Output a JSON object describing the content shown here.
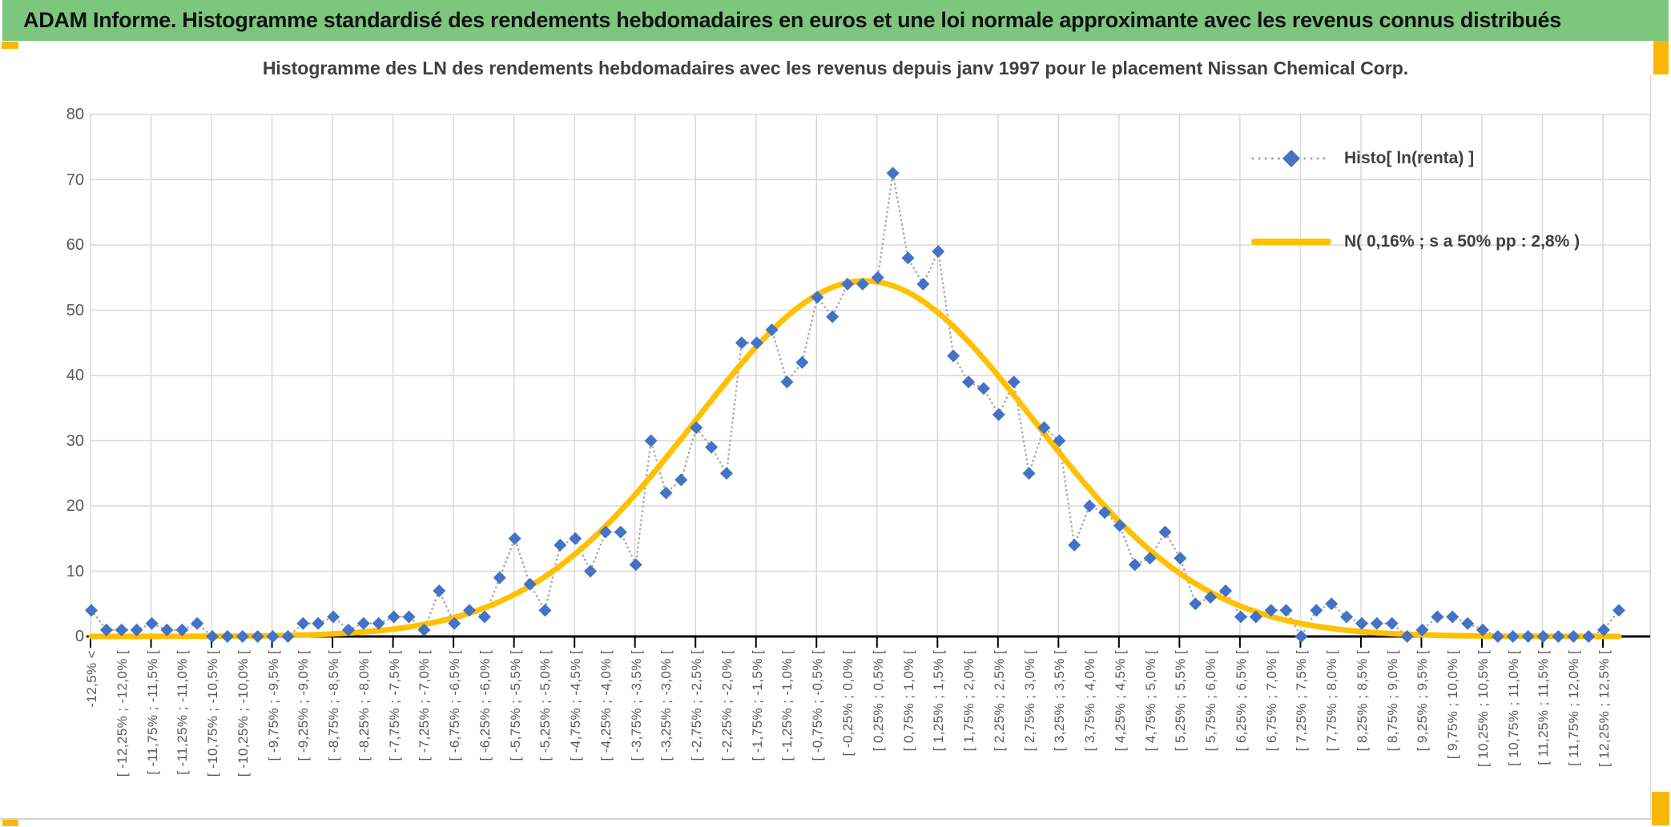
{
  "header": {
    "title": "ADAM Informe. Histogramme standardisé des rendements hebdomadaires en euros et une loi normale approximante avec les revenus connus distribués",
    "bg_color": "#7CC77D"
  },
  "chart": {
    "title": "Histogramme des LN des rendements hebdomadaires avec les revenus depuis janv 1997 pour le placement Nissan Chemical Corp.",
    "legend": [
      {
        "label": "Histo[ ln(renta) ]",
        "marker": "blue-diamond-dotted-line",
        "color": "#4472C4",
        "line_color": "#A6A6A6"
      },
      {
        "label": "N( 0,16% ; s a 50% pp : 2,8% )",
        "marker": "solid-line",
        "color": "#FFC000"
      }
    ]
  },
  "chart_data": {
    "type": "line",
    "title": "Histogramme des LN des rendements hebdomadaires avec les revenus depuis janv 1997 pour le placement Nissan Chemical Corp.",
    "ylabel": "",
    "xlabel": "",
    "ylim": [
      0,
      80
    ],
    "yticks": [
      0,
      10,
      20,
      30,
      40,
      50,
      60,
      70,
      80
    ],
    "grid": true,
    "grid_color": "#D9D9D9",
    "legend_position": "top-right",
    "x_tick_labels": [
      "-12,5% <",
      "[ -12,25% ; -12,0% [",
      "[ -11,75% ; -11,5% [",
      "[ -11,25% ; -11,0% [",
      "[ -10,75% ; -10,5% [",
      "[ -10,25% ; -10,0% [",
      "[ -9,75% ; -9,5% [",
      "[ -9,25% ; -9,0% [",
      "[ -8,75% ; -8,5% [",
      "[ -8,25% ; -8,0% [",
      "[ -7,75% ; -7,5% [",
      "[ -7,25% ; -7,0% [",
      "[ -6,75% ; -6,5% [",
      "[ -6,25% ; -6,0% [",
      "[ -5,75% ; -5,5% [",
      "[ -5,25% ; -5,0% [",
      "[ -4,75% ; -4,5% [",
      "[ -4,25% ; -4,0% [",
      "[ -3,75% ; -3,5% [",
      "[ -3,25% ; -3,0% [",
      "[ -2,75% ; -2,5% [",
      "[ -2,25% ; -2,0% [",
      "[ -1,75% ; -1,5% [",
      "[ -1,25% ; -1,0% [",
      "[ -0,75% ; -0,5% [",
      "[ -0,25% ; 0,0% [",
      "[ 0,25% ; 0,5% [",
      "[ 0,75% ; 1,0% [",
      "[ 1,25% ; 1,5% [",
      "[ 1,75% ; 2,0% [",
      "[ 2,25% ; 2,5% [",
      "[ 2,75% ; 3,0% [",
      "[ 3,25% ; 3,5% [",
      "[ 3,75% ; 4,0% [",
      "[ 4,25% ; 4,5% [",
      "[ 4,75% ; 5,0% [",
      "[ 5,25% ; 5,5% [",
      "[ 5,75% ; 6,0% [",
      "[ 6,25% ; 6,5% [",
      "[ 6,75% ; 7,0% [",
      "[ 7,25% ; 7,5% [",
      "[ 7,75% ; 8,0% [",
      "[ 8,25% ; 8,5% [",
      "[ 8,75% ; 9,0% [",
      "[ 9,25% ; 9,5% [",
      "[ 9,75% ; 10,0% [",
      "[ 10,25% ; 10,5% [",
      "[ 10,75% ; 11,0% [",
      "[ 11,25% ; 11,5% [",
      "[ 11,75% ; 12,0% [",
      "[ 12,25% ; 12,5% ["
    ],
    "x_tick_label_every_other_bin": true,
    "bin_width_pct": 0.25,
    "bins_range_pct": [
      -12.5,
      12.5
    ],
    "series": [
      {
        "name": "Histo[ ln(renta) ]",
        "style": "dotted-line-diamond-markers",
        "color": "#4472C4",
        "line_color": "#A6A6A6",
        "values": [
          4,
          1,
          1,
          1,
          2,
          1,
          1,
          2,
          0,
          0,
          0,
          0,
          0,
          0,
          2,
          2,
          3,
          1,
          2,
          2,
          3,
          3,
          1,
          7,
          2,
          4,
          3,
          9,
          15,
          8,
          4,
          14,
          15,
          10,
          16,
          16,
          11,
          30,
          22,
          24,
          32,
          29,
          25,
          45,
          45,
          47,
          39,
          42,
          52,
          49,
          54,
          54,
          55,
          71,
          58,
          54,
          59,
          43,
          39,
          38,
          34,
          39,
          25,
          32,
          30,
          14,
          20,
          19,
          17,
          11,
          12,
          16,
          12,
          5,
          6,
          7,
          3,
          3,
          4,
          4,
          0,
          4,
          5,
          3,
          2,
          2,
          2,
          0,
          1,
          3,
          3,
          2,
          1,
          0,
          0,
          0,
          0,
          0,
          0,
          0,
          1,
          4
        ]
      },
      {
        "name": "N( 0,16% ; s a 50% pp : 2,8% )",
        "style": "smooth-normal-curve",
        "color": "#FFC000",
        "normal": {
          "mean_pct": 0.16,
          "sd_pct": 2.8,
          "peak_height": 54.5,
          "first_bin_center_pct": -12.625
        }
      }
    ]
  },
  "accents": {
    "corner_color": "#FBB705"
  }
}
